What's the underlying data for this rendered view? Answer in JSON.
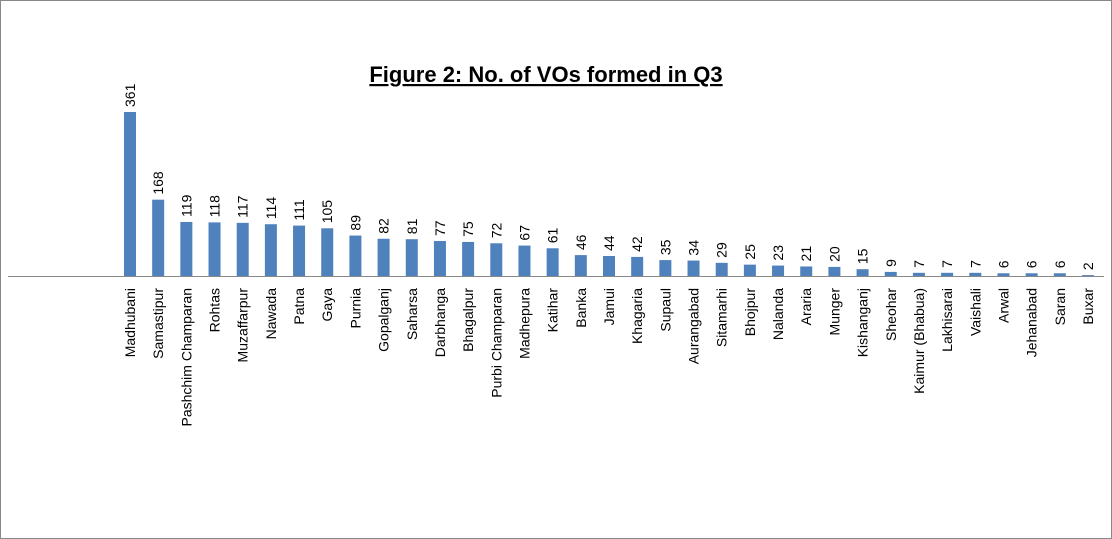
{
  "chart_data": {
    "type": "bar",
    "title": "Figure 2: No. of VOs formed in Q3",
    "categories": [
      "Madhubani",
      "Samastipur",
      "Pashchim Champaran",
      "Rohtas",
      "Muzaffarpur",
      "Nawada",
      "Patna",
      "Gaya",
      "Purnia",
      "Gopalganj",
      "Saharsa",
      "Darbhanga",
      "Bhagalpur",
      "Purbi Champaran",
      "Madhepura",
      "Katihar",
      "Banka",
      "Jamui",
      "Khagaria",
      "Supaul",
      "Aurangabad",
      "Sitamarhi",
      "Bhojpur",
      "Nalanda",
      "Araria",
      "Munger",
      "Kishanganj",
      "Sheohar",
      "Kaimur (Bhabua)",
      "Lakhisarai",
      "Vaishali",
      "Arwal",
      "Jehanabad",
      "Saran",
      "Buxar"
    ],
    "values": [
      361,
      168,
      119,
      118,
      117,
      114,
      111,
      105,
      89,
      82,
      81,
      77,
      75,
      72,
      67,
      61,
      46,
      44,
      42,
      35,
      34,
      29,
      25,
      23,
      21,
      20,
      15,
      9,
      7,
      7,
      7,
      6,
      6,
      6,
      2
    ],
    "color": "#4f81bd"
  }
}
